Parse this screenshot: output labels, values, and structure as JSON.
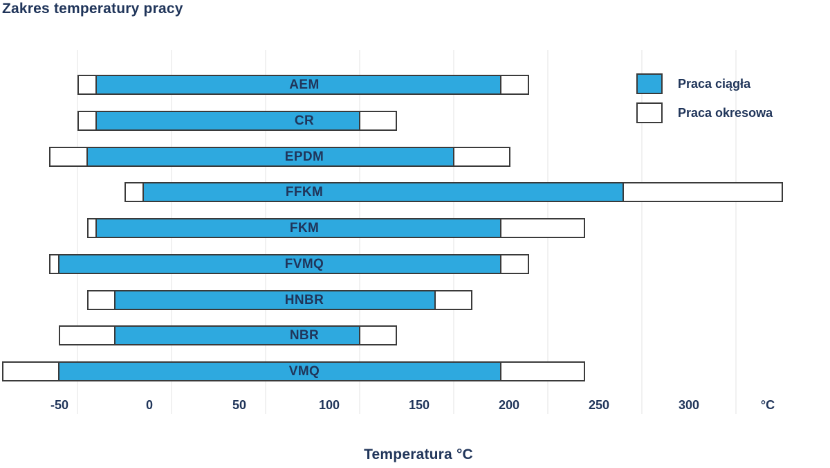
{
  "page": {
    "title": "Zakres temperatury pracy"
  },
  "chart_data": {
    "type": "bar",
    "subtype": "horizontal-range-bars",
    "title": "Zakres temperatury pracy",
    "xlabel": "Temperatura °C",
    "axis_unit_label": "°C",
    "x_ticks": [
      -50,
      0,
      50,
      100,
      150,
      200,
      250,
      300
    ],
    "xlim": [
      -90,
      350
    ],
    "grid": "vertical-gridlines-on",
    "legend_position": "top-right",
    "legend": [
      {
        "label": "Praca ciągła",
        "key": "continuous",
        "fill": "#2ea9df"
      },
      {
        "label": "Praca okresowa",
        "key": "intermittent",
        "fill": "#ffffff"
      }
    ],
    "categories": [
      "AEM",
      "CR",
      "EPDM",
      "FFKM",
      "FKM",
      "FVMQ",
      "HNBR",
      "NBR",
      "VMQ"
    ],
    "series": [
      {
        "name": "AEM",
        "continuous_range_c": [
          -40,
          175
        ],
        "intermittent_range_c": [
          -50,
          190
        ]
      },
      {
        "name": "CR",
        "continuous_range_c": [
          -40,
          100
        ],
        "intermittent_range_c": [
          -50,
          120
        ]
      },
      {
        "name": "EPDM",
        "continuous_range_c": [
          -45,
          150
        ],
        "intermittent_range_c": [
          -65,
          180
        ]
      },
      {
        "name": "FFKM",
        "continuous_range_c": [
          -15,
          240
        ],
        "intermittent_range_c": [
          -25,
          325
        ]
      },
      {
        "name": "FKM",
        "continuous_range_c": [
          -40,
          175
        ],
        "intermittent_range_c": [
          -45,
          220
        ]
      },
      {
        "name": "FVMQ",
        "continuous_range_c": [
          -60,
          175
        ],
        "intermittent_range_c": [
          -65,
          190
        ]
      },
      {
        "name": "HNBR",
        "continuous_range_c": [
          -30,
          140
        ],
        "intermittent_range_c": [
          -45,
          160
        ]
      },
      {
        "name": "NBR",
        "continuous_range_c": [
          -30,
          100
        ],
        "intermittent_range_c": [
          -60,
          120
        ]
      },
      {
        "name": "VMQ",
        "continuous_range_c": [
          -60,
          175
        ],
        "intermittent_range_c": [
          -90,
          220
        ]
      }
    ],
    "colors": {
      "bar_fill": "#2ea9df",
      "bar_border": "#3a3a3a",
      "text": "#20355a",
      "gridline": "#f1f1f1",
      "background": "#ffffff"
    }
  }
}
